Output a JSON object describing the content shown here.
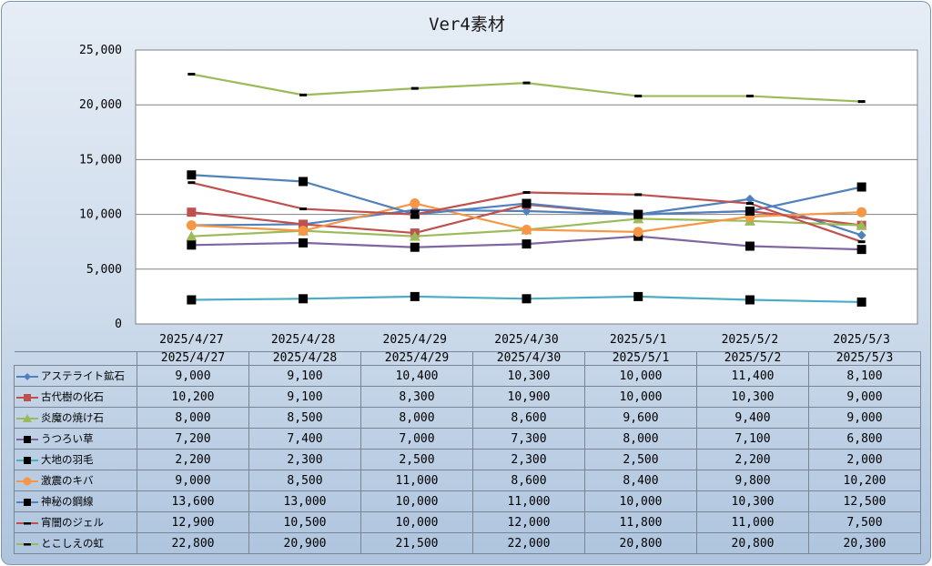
{
  "chart_data": {
    "type": "line",
    "title": "Ver4素材",
    "categories": [
      "2025/4/27",
      "2025/4/28",
      "2025/4/29",
      "2025/4/30",
      "2025/5/1",
      "2025/5/2",
      "2025/5/3"
    ],
    "ylim": [
      0,
      25000
    ],
    "yticks": [
      "0",
      "5,000",
      "10,000",
      "15,000",
      "20,000",
      "25,000"
    ],
    "grid": true,
    "legend": "data-table",
    "series": [
      {
        "name": "アステライト鉱石",
        "color": "#4f81bd",
        "marker": "diamond",
        "values": [
          9000,
          9100,
          10400,
          10300,
          10000,
          11400,
          8100
        ],
        "labels": [
          "9,000",
          "9,100",
          "10,400",
          "10,300",
          "10,000",
          "11,400",
          "8,100"
        ]
      },
      {
        "name": "古代樹の化石",
        "color": "#c0504d",
        "marker": "square",
        "values": [
          10200,
          9100,
          8300,
          10900,
          10000,
          10300,
          9000
        ],
        "labels": [
          "10,200",
          "9,100",
          "8,300",
          "10,900",
          "10,000",
          "10,300",
          "9,000"
        ]
      },
      {
        "name": "炎魔の焼け石",
        "color": "#9bbb59",
        "marker": "triangle",
        "values": [
          8000,
          8500,
          8000,
          8600,
          9600,
          9400,
          9000
        ],
        "labels": [
          "8,000",
          "8,500",
          "8,000",
          "8,600",
          "9,600",
          "9,400",
          "9,000"
        ]
      },
      {
        "name": "うつろい草",
        "color": "#8064a2",
        "marker": "bigsquare",
        "values": [
          7200,
          7400,
          7000,
          7300,
          8000,
          7100,
          6800
        ],
        "labels": [
          "7,200",
          "7,400",
          "7,000",
          "7,300",
          "8,000",
          "7,100",
          "6,800"
        ]
      },
      {
        "name": "大地の羽毛",
        "color": "#4bacc6",
        "marker": "bigsquare",
        "values": [
          2200,
          2300,
          2500,
          2300,
          2500,
          2200,
          2000
        ],
        "labels": [
          "2,200",
          "2,300",
          "2,500",
          "2,300",
          "2,500",
          "2,200",
          "2,000"
        ]
      },
      {
        "name": "激震のキバ",
        "color": "#f79646",
        "marker": "circle",
        "values": [
          9000,
          8500,
          11000,
          8600,
          8400,
          9800,
          10200
        ],
        "labels": [
          "9,000",
          "8,500",
          "11,000",
          "8,600",
          "8,400",
          "9,800",
          "10,200"
        ]
      },
      {
        "name": "神秘の鋼線",
        "color": "#4f81bd",
        "marker": "bigsquare",
        "values": [
          13600,
          13000,
          10000,
          11000,
          10000,
          10300,
          12500
        ],
        "labels": [
          "13,600",
          "13,000",
          "10,000",
          "11,000",
          "10,000",
          "10,300",
          "12,500"
        ]
      },
      {
        "name": "宵闇のジェル",
        "color": "#c0504d",
        "marker": "dash",
        "values": [
          12900,
          10500,
          10000,
          12000,
          11800,
          11000,
          7500
        ],
        "labels": [
          "12,900",
          "10,500",
          "10,000",
          "12,000",
          "11,800",
          "11,000",
          "7,500"
        ]
      },
      {
        "name": "とこしえの虹",
        "color": "#9bbb59",
        "marker": "dash",
        "values": [
          22800,
          20900,
          21500,
          22000,
          20800,
          20800,
          20300
        ],
        "labels": [
          "22,800",
          "20,900",
          "21,500",
          "22,000",
          "20,800",
          "20,800",
          "20,300"
        ]
      }
    ]
  }
}
